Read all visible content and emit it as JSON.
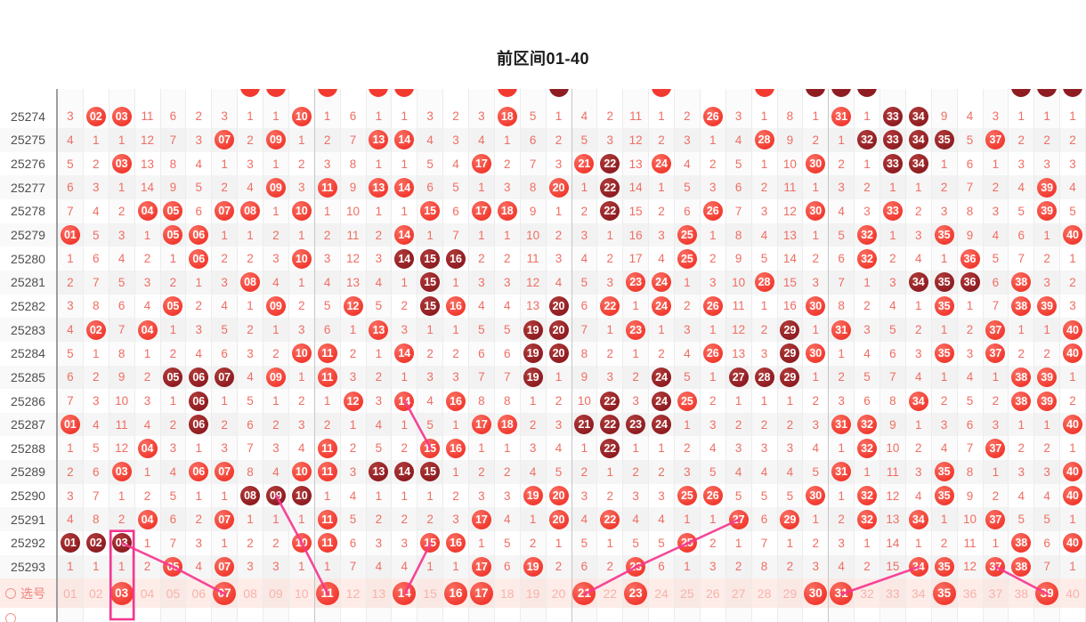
{
  "title": "前区间01-40",
  "colors": {
    "ball_light": "#f23a30",
    "ball_dark": "#8e1c21",
    "miss_text": "#ef6e63",
    "period_text": "#4f4f4f",
    "select_bg": "#fdece8",
    "select_unpicked_text": "#f6b3ab",
    "trend_line": "#f5368f",
    "highlight_box": "#f5368f"
  },
  "legend": {
    "ball_light_meaning": "drawn-number",
    "ball_dark_meaning": "repeat-drawn-number",
    "plain_number_meaning": "miss-count"
  },
  "columns": [
    "01",
    "02",
    "03",
    "04",
    "05",
    "06",
    "07",
    "08",
    "09",
    "10",
    "11",
    "12",
    "13",
    "14",
    "15",
    "16",
    "17",
    "18",
    "19",
    "20",
    "21",
    "22",
    "23",
    "24",
    "25",
    "26",
    "27",
    "28",
    "29",
    "30",
    "31",
    "32",
    "33",
    "34",
    "35",
    "36",
    "37",
    "38",
    "39",
    "40"
  ],
  "zone_boundary_after_cols": [
    10,
    20,
    30
  ],
  "partial_top_row": {
    "light_cols": [
      8,
      9,
      11,
      13,
      14,
      18,
      24,
      28
    ],
    "dark_cols": [
      20,
      30,
      31,
      32,
      38,
      39,
      40
    ]
  },
  "rows": [
    {
      "period": "25274",
      "cells": [
        "3",
        "b02",
        "b03",
        "11",
        "6",
        "2",
        "3",
        "1",
        "1",
        "b10",
        "1",
        "6",
        "1",
        "1",
        "3",
        "2",
        "3",
        "b18",
        "5",
        "1",
        "4",
        "2",
        "11",
        "1",
        "2",
        "b26",
        "3",
        "1",
        "8",
        "1",
        "b31",
        "1",
        "d33",
        "d34",
        "9",
        "4",
        "3",
        "1",
        "1",
        "1"
      ]
    },
    {
      "period": "25275",
      "cells": [
        "4",
        "1",
        "1",
        "12",
        "7",
        "3",
        "b07",
        "2",
        "b09",
        "1",
        "2",
        "7",
        "b13",
        "b14",
        "4",
        "3",
        "4",
        "1",
        "6",
        "2",
        "5",
        "3",
        "12",
        "2",
        "3",
        "1",
        "4",
        "b28",
        "9",
        "2",
        "1",
        "d32",
        "d33",
        "d34",
        "d35",
        "5",
        "b37",
        "2",
        "2",
        "2"
      ]
    },
    {
      "period": "25276",
      "cells": [
        "5",
        "2",
        "b03",
        "13",
        "8",
        "4",
        "1",
        "3",
        "1",
        "2",
        "3",
        "8",
        "1",
        "1",
        "5",
        "4",
        "b17",
        "2",
        "7",
        "3",
        "b21",
        "d22",
        "13",
        "b24",
        "4",
        "2",
        "5",
        "1",
        "10",
        "b30",
        "2",
        "1",
        "d33",
        "d34",
        "1",
        "6",
        "1",
        "3",
        "3",
        "3"
      ]
    },
    {
      "period": "25277",
      "cells": [
        "6",
        "3",
        "1",
        "14",
        "9",
        "5",
        "2",
        "4",
        "b09",
        "3",
        "b11",
        "9",
        "b13",
        "b14",
        "6",
        "5",
        "1",
        "3",
        "8",
        "b20",
        "1",
        "d22",
        "14",
        "1",
        "5",
        "3",
        "6",
        "2",
        "11",
        "1",
        "3",
        "2",
        "1",
        "1",
        "2",
        "7",
        "2",
        "4",
        "b39",
        "4"
      ]
    },
    {
      "period": "25278",
      "cells": [
        "7",
        "4",
        "2",
        "b04",
        "b05",
        "6",
        "b07",
        "b08",
        "1",
        "b10",
        "1",
        "10",
        "1",
        "1",
        "b15",
        "6",
        "b17",
        "b18",
        "9",
        "1",
        "2",
        "d22",
        "15",
        "2",
        "6",
        "b26",
        "7",
        "3",
        "12",
        "b30",
        "4",
        "3",
        "b33",
        "2",
        "3",
        "8",
        "3",
        "5",
        "b39",
        "5"
      ]
    },
    {
      "period": "25279",
      "cells": [
        "b01",
        "5",
        "3",
        "1",
        "b05",
        "b06",
        "1",
        "1",
        "2",
        "1",
        "2",
        "11",
        "2",
        "b14",
        "1",
        "7",
        "1",
        "1",
        "10",
        "2",
        "3",
        "1",
        "16",
        "3",
        "b25",
        "1",
        "8",
        "4",
        "13",
        "1",
        "5",
        "b32",
        "1",
        "3",
        "b35",
        "9",
        "4",
        "6",
        "1",
        "b40"
      ]
    },
    {
      "period": "25280",
      "cells": [
        "1",
        "6",
        "4",
        "2",
        "1",
        "b06",
        "2",
        "2",
        "3",
        "b10",
        "3",
        "12",
        "3",
        "d14",
        "d15",
        "d16",
        "2",
        "2",
        "11",
        "3",
        "4",
        "2",
        "17",
        "4",
        "b25",
        "2",
        "9",
        "5",
        "14",
        "2",
        "6",
        "b32",
        "2",
        "4",
        "1",
        "b36",
        "5",
        "7",
        "2",
        "1"
      ]
    },
    {
      "period": "25281",
      "cells": [
        "2",
        "7",
        "5",
        "3",
        "2",
        "1",
        "3",
        "b08",
        "4",
        "1",
        "4",
        "13",
        "4",
        "1",
        "d15",
        "1",
        "3",
        "3",
        "12",
        "4",
        "5",
        "3",
        "b23",
        "b24",
        "1",
        "3",
        "10",
        "b28",
        "15",
        "3",
        "7",
        "1",
        "3",
        "d34",
        "d35",
        "d36",
        "6",
        "b38",
        "3",
        "2"
      ]
    },
    {
      "period": "25282",
      "cells": [
        "3",
        "8",
        "6",
        "4",
        "b05",
        "2",
        "4",
        "1",
        "b09",
        "2",
        "5",
        "b12",
        "5",
        "2",
        "d15",
        "b16",
        "4",
        "4",
        "13",
        "d20",
        "6",
        "b22",
        "1",
        "b24",
        "2",
        "b26",
        "11",
        "1",
        "16",
        "b30",
        "8",
        "2",
        "4",
        "1",
        "b35",
        "1",
        "7",
        "b38",
        "b39",
        "3"
      ]
    },
    {
      "period": "25283",
      "cells": [
        "4",
        "b02",
        "7",
        "b04",
        "1",
        "3",
        "5",
        "2",
        "1",
        "3",
        "6",
        "1",
        "b13",
        "3",
        "1",
        "1",
        "5",
        "5",
        "d19",
        "d20",
        "7",
        "1",
        "b23",
        "1",
        "3",
        "1",
        "12",
        "2",
        "d29",
        "1",
        "b31",
        "3",
        "5",
        "2",
        "1",
        "2",
        "b37",
        "1",
        "1",
        "b40"
      ]
    },
    {
      "period": "25284",
      "cells": [
        "5",
        "1",
        "8",
        "1",
        "2",
        "4",
        "6",
        "3",
        "2",
        "b10",
        "b11",
        "2",
        "1",
        "b14",
        "2",
        "2",
        "6",
        "6",
        "d19",
        "d20",
        "8",
        "2",
        "1",
        "2",
        "4",
        "b26",
        "13",
        "3",
        "d29",
        "b30",
        "1",
        "4",
        "6",
        "3",
        "b35",
        "3",
        "b37",
        "2",
        "2",
        "b40"
      ]
    },
    {
      "period": "25285",
      "cells": [
        "6",
        "2",
        "9",
        "2",
        "d05",
        "d06",
        "d07",
        "4",
        "b09",
        "1",
        "b11",
        "3",
        "2",
        "1",
        "3",
        "3",
        "7",
        "7",
        "d19",
        "1",
        "9",
        "3",
        "2",
        "d24",
        "5",
        "1",
        "d27",
        "d28",
        "d29",
        "1",
        "2",
        "5",
        "7",
        "4",
        "1",
        "4",
        "1",
        "b38",
        "b39",
        "1"
      ]
    },
    {
      "period": "25286",
      "cells": [
        "7",
        "3",
        "10",
        "3",
        "1",
        "d06",
        "1",
        "5",
        "1",
        "2",
        "1",
        "b12",
        "3",
        "b14",
        "4",
        "b16",
        "8",
        "8",
        "1",
        "2",
        "10",
        "d22",
        "3",
        "d24",
        "b25",
        "2",
        "1",
        "1",
        "1",
        "2",
        "3",
        "6",
        "8",
        "b34",
        "2",
        "5",
        "2",
        "b38",
        "b39",
        "2"
      ]
    },
    {
      "period": "25287",
      "cells": [
        "b01",
        "4",
        "11",
        "4",
        "2",
        "d06",
        "2",
        "6",
        "2",
        "3",
        "2",
        "1",
        "4",
        "1",
        "5",
        "1",
        "b17",
        "b18",
        "2",
        "3",
        "d21",
        "d22",
        "d23",
        "d24",
        "1",
        "3",
        "2",
        "2",
        "2",
        "3",
        "b31",
        "b32",
        "9",
        "1",
        "3",
        "6",
        "3",
        "1",
        "1",
        "b40"
      ]
    },
    {
      "period": "25288",
      "cells": [
        "1",
        "5",
        "12",
        "b04",
        "3",
        "1",
        "3",
        "7",
        "3",
        "4",
        "b11",
        "2",
        "5",
        "2",
        "b15",
        "b16",
        "1",
        "1",
        "3",
        "4",
        "1",
        "d22",
        "1",
        "1",
        "2",
        "4",
        "3",
        "3",
        "3",
        "4",
        "1",
        "b32",
        "10",
        "2",
        "4",
        "7",
        "b37",
        "2",
        "2",
        "1"
      ]
    },
    {
      "period": "25289",
      "cells": [
        "2",
        "6",
        "b03",
        "1",
        "4",
        "b06",
        "b07",
        "8",
        "4",
        "b10",
        "b11",
        "3",
        "d13",
        "d14",
        "d15",
        "1",
        "2",
        "2",
        "4",
        "5",
        "2",
        "1",
        "2",
        "2",
        "3",
        "5",
        "4",
        "4",
        "4",
        "5",
        "b31",
        "1",
        "11",
        "3",
        "b35",
        "8",
        "1",
        "3",
        "3",
        "b40"
      ]
    },
    {
      "period": "25290",
      "cells": [
        "3",
        "7",
        "1",
        "2",
        "5",
        "1",
        "1",
        "d08",
        "d09",
        "d10",
        "1",
        "4",
        "1",
        "1",
        "1",
        "2",
        "3",
        "3",
        "b19",
        "b20",
        "3",
        "2",
        "3",
        "3",
        "b25",
        "b26",
        "5",
        "5",
        "5",
        "b30",
        "1",
        "b32",
        "12",
        "4",
        "b35",
        "9",
        "2",
        "4",
        "4",
        "b40"
      ]
    },
    {
      "period": "25291",
      "cells": [
        "4",
        "8",
        "2",
        "b04",
        "6",
        "2",
        "b07",
        "1",
        "1",
        "1",
        "b11",
        "5",
        "2",
        "2",
        "2",
        "3",
        "b17",
        "4",
        "1",
        "b20",
        "4",
        "b22",
        "4",
        "4",
        "1",
        "1",
        "b27",
        "6",
        "b29",
        "1",
        "2",
        "b32",
        "13",
        "b34",
        "1",
        "10",
        "b37",
        "5",
        "5",
        "1"
      ]
    },
    {
      "period": "25292",
      "cells": [
        "d01",
        "d02",
        "d03",
        "1",
        "7",
        "3",
        "1",
        "2",
        "2",
        "b10",
        "b11",
        "6",
        "3",
        "3",
        "b15",
        "b16",
        "1",
        "5",
        "2",
        "1",
        "5",
        "1",
        "5",
        "5",
        "b25",
        "2",
        "1",
        "7",
        "1",
        "2",
        "3",
        "1",
        "14",
        "1",
        "2",
        "11",
        "1",
        "b38",
        "6",
        "b40"
      ]
    },
    {
      "period": "25293",
      "cells": [
        "1",
        "1",
        "1",
        "2",
        "b05",
        "4",
        "b07",
        "3",
        "3",
        "1",
        "1",
        "7",
        "4",
        "4",
        "1",
        "1",
        "b17",
        "6",
        "b19",
        "2",
        "6",
        "2",
        "b23",
        "6",
        "1",
        "3",
        "2",
        "8",
        "2",
        "3",
        "4",
        "2",
        "15",
        "b34",
        "b35",
        "12",
        "b37",
        "b38",
        "7",
        "1"
      ]
    }
  ],
  "select_row": {
    "icon": "circle-outline-icon",
    "label": "选号",
    "selected": [
      "03",
      "07",
      "11",
      "14",
      "16",
      "17",
      "21",
      "23",
      "30",
      "31",
      "35",
      "39"
    ]
  },
  "trend_lines": [
    [
      [
        14,
        12
      ],
      [
        15,
        14
      ]
    ],
    [
      [
        9,
        16
      ],
      [
        10,
        18
      ],
      [
        11,
        "s"
      ]
    ],
    [
      [
        3,
        18
      ],
      [
        5,
        19
      ],
      [
        7,
        "s"
      ]
    ],
    [
      [
        15,
        18
      ],
      [
        14,
        "s"
      ]
    ],
    [
      [
        27,
        17
      ],
      [
        25,
        18
      ],
      [
        23,
        19
      ],
      [
        21,
        "s"
      ]
    ],
    [
      [
        34,
        19
      ],
      [
        31,
        "s"
      ]
    ],
    [
      [
        37,
        19
      ],
      [
        39,
        "s"
      ]
    ]
  ],
  "highlight_box": {
    "column": "03",
    "col_index": 3,
    "from_row_index": 18
  },
  "chart_data": {
    "type": "table",
    "title": "前区间01-40",
    "x_categories_numbers": "01-40",
    "y_periods": [
      "25274",
      "25275",
      "25276",
      "25277",
      "25278",
      "25279",
      "25280",
      "25281",
      "25282",
      "25283",
      "25284",
      "25285",
      "25286",
      "25287",
      "25288",
      "25289",
      "25290",
      "25291",
      "25292",
      "25293"
    ],
    "drawn_numbers_per_period": {
      "25274": [
        "02",
        "03",
        "10",
        "18",
        "26",
        "31",
        "33",
        "34"
      ],
      "25275": [
        "07",
        "09",
        "13",
        "14",
        "28",
        "32",
        "33",
        "34",
        "35",
        "37"
      ],
      "25276": [
        "03",
        "17",
        "21",
        "22",
        "24",
        "30",
        "33",
        "34"
      ],
      "25277": [
        "09",
        "11",
        "13",
        "14",
        "20",
        "22",
        "39"
      ],
      "25278": [
        "04",
        "05",
        "07",
        "08",
        "10",
        "15",
        "17",
        "18",
        "22",
        "26",
        "30",
        "33",
        "39"
      ],
      "25279": [
        "01",
        "05",
        "06",
        "14",
        "25",
        "32",
        "35",
        "40"
      ],
      "25280": [
        "06",
        "10",
        "14",
        "15",
        "16",
        "25",
        "32",
        "36"
      ],
      "25281": [
        "08",
        "15",
        "23",
        "24",
        "28",
        "34",
        "35",
        "36",
        "38"
      ],
      "25282": [
        "05",
        "09",
        "12",
        "15",
        "16",
        "20",
        "22",
        "24",
        "26",
        "30",
        "35",
        "38",
        "39"
      ],
      "25283": [
        "02",
        "04",
        "13",
        "19",
        "20",
        "23",
        "29",
        "31",
        "37",
        "40"
      ],
      "25284": [
        "10",
        "11",
        "14",
        "19",
        "20",
        "26",
        "29",
        "30",
        "35",
        "37",
        "40"
      ],
      "25285": [
        "05",
        "06",
        "07",
        "09",
        "11",
        "19",
        "24",
        "27",
        "28",
        "29",
        "38",
        "39"
      ],
      "25286": [
        "06",
        "12",
        "14",
        "16",
        "22",
        "24",
        "25",
        "34",
        "38",
        "39"
      ],
      "25287": [
        "01",
        "06",
        "17",
        "18",
        "21",
        "22",
        "23",
        "24",
        "31",
        "32",
        "40"
      ],
      "25288": [
        "04",
        "11",
        "15",
        "16",
        "22",
        "32",
        "37"
      ],
      "25289": [
        "03",
        "06",
        "07",
        "10",
        "11",
        "13",
        "14",
        "15",
        "31",
        "35",
        "40"
      ],
      "25290": [
        "08",
        "09",
        "10",
        "19",
        "20",
        "25",
        "26",
        "30",
        "32",
        "35",
        "40"
      ],
      "25291": [
        "04",
        "07",
        "11",
        "17",
        "20",
        "22",
        "27",
        "29",
        "32",
        "34",
        "37"
      ],
      "25292": [
        "01",
        "02",
        "03",
        "10",
        "11",
        "15",
        "16",
        "25",
        "38",
        "40"
      ],
      "25293": [
        "05",
        "07",
        "17",
        "19",
        "23",
        "34",
        "35",
        "37",
        "38"
      ]
    },
    "selected_numbers": [
      "03",
      "07",
      "11",
      "14",
      "16",
      "17",
      "21",
      "23",
      "30",
      "31",
      "35",
      "39"
    ],
    "cell_values": "miss counts since last appearance; see rows[].cells"
  }
}
